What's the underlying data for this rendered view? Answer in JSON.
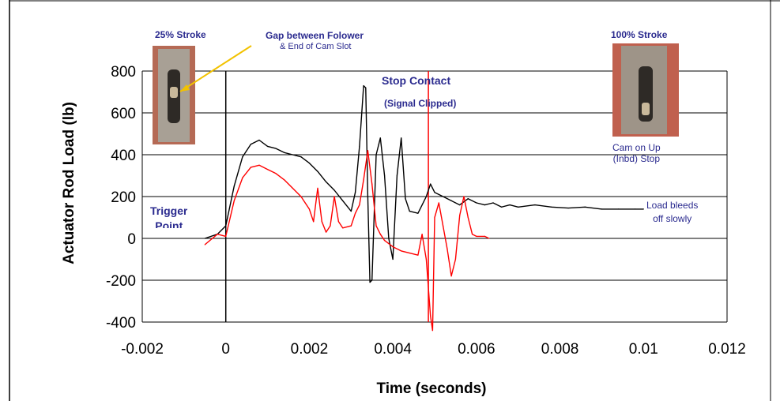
{
  "chart_data": {
    "type": "line",
    "xlabel": "Time (seconds)",
    "ylabel": "Actuator Rod Load (lb)",
    "xlim": [
      -0.002,
      0.012
    ],
    "ylim": [
      -400,
      800
    ],
    "x_ticks": [
      "-0.002",
      "0",
      "0.002",
      "0.004",
      "0.006",
      "0.008",
      "0.01",
      "0.012"
    ],
    "y_ticks": [
      "800",
      "600",
      "400",
      "200",
      "0",
      "-200",
      "-400"
    ],
    "grid": "horizontal",
    "series": [
      {
        "color": "#000000",
        "points": [
          [
            -0.0005,
            0
          ],
          [
            -0.0002,
            20
          ],
          [
            0.0,
            60
          ],
          [
            0.0002,
            250
          ],
          [
            0.0004,
            390
          ],
          [
            0.0006,
            450
          ],
          [
            0.0008,
            470
          ],
          [
            0.001,
            440
          ],
          [
            0.0012,
            430
          ],
          [
            0.0014,
            410
          ],
          [
            0.0016,
            400
          ],
          [
            0.0018,
            390
          ],
          [
            0.002,
            360
          ],
          [
            0.0022,
            320
          ],
          [
            0.0024,
            270
          ],
          [
            0.0026,
            230
          ],
          [
            0.0028,
            180
          ],
          [
            0.003,
            130
          ],
          [
            0.0031,
            220
          ],
          [
            0.0032,
            440
          ],
          [
            0.0033,
            730
          ],
          [
            0.00335,
            720
          ],
          [
            0.0034,
            200
          ],
          [
            0.00345,
            -210
          ],
          [
            0.0035,
            -200
          ],
          [
            0.0036,
            400
          ],
          [
            0.0037,
            480
          ],
          [
            0.0038,
            300
          ],
          [
            0.0039,
            0
          ],
          [
            0.004,
            -100
          ],
          [
            0.0041,
            300
          ],
          [
            0.0042,
            480
          ],
          [
            0.0043,
            190
          ],
          [
            0.0044,
            130
          ],
          [
            0.0046,
            120
          ],
          [
            0.0048,
            200
          ],
          [
            0.0049,
            260
          ],
          [
            0.005,
            220
          ],
          [
            0.0052,
            200
          ],
          [
            0.0054,
            180
          ],
          [
            0.0056,
            160
          ],
          [
            0.0058,
            190
          ],
          [
            0.006,
            170
          ],
          [
            0.0062,
            160
          ],
          [
            0.0064,
            170
          ],
          [
            0.0066,
            150
          ],
          [
            0.0068,
            160
          ],
          [
            0.007,
            150
          ],
          [
            0.0074,
            160
          ],
          [
            0.0078,
            150
          ],
          [
            0.0082,
            145
          ],
          [
            0.0086,
            150
          ],
          [
            0.009,
            140
          ],
          [
            0.0094,
            140
          ],
          [
            0.0098,
            140
          ],
          [
            0.01,
            140
          ]
        ]
      },
      {
        "color": "#ff0000",
        "points": [
          [
            -0.0005,
            -30
          ],
          [
            -0.0002,
            20
          ],
          [
            0.0,
            10
          ],
          [
            0.0002,
            180
          ],
          [
            0.0004,
            290
          ],
          [
            0.0006,
            340
          ],
          [
            0.0008,
            350
          ],
          [
            0.001,
            330
          ],
          [
            0.0012,
            310
          ],
          [
            0.0014,
            280
          ],
          [
            0.0016,
            240
          ],
          [
            0.0018,
            200
          ],
          [
            0.002,
            140
          ],
          [
            0.0021,
            80
          ],
          [
            0.0022,
            240
          ],
          [
            0.0023,
            80
          ],
          [
            0.0024,
            30
          ],
          [
            0.0025,
            60
          ],
          [
            0.0026,
            200
          ],
          [
            0.0027,
            80
          ],
          [
            0.0028,
            50
          ],
          [
            0.003,
            60
          ],
          [
            0.0031,
            120
          ],
          [
            0.0032,
            160
          ],
          [
            0.0033,
            280
          ],
          [
            0.0034,
            420
          ],
          [
            0.0035,
            260
          ],
          [
            0.0036,
            60
          ],
          [
            0.0037,
            20
          ],
          [
            0.0038,
            -10
          ],
          [
            0.004,
            -40
          ],
          [
            0.0042,
            -60
          ],
          [
            0.0044,
            -70
          ],
          [
            0.0046,
            -80
          ],
          [
            0.0047,
            20
          ],
          [
            0.0048,
            -100
          ],
          [
            0.0049,
            -370
          ],
          [
            0.00495,
            -440
          ],
          [
            0.005,
            100
          ],
          [
            0.0051,
            170
          ],
          [
            0.0052,
            60
          ],
          [
            0.0053,
            -50
          ],
          [
            0.0054,
            -180
          ],
          [
            0.0055,
            -100
          ],
          [
            0.0056,
            110
          ],
          [
            0.0057,
            200
          ],
          [
            0.0058,
            100
          ],
          [
            0.0059,
            20
          ],
          [
            0.006,
            10
          ],
          [
            0.0062,
            10
          ],
          [
            0.0063,
            0
          ]
        ]
      }
    ],
    "vertical_markers": [
      {
        "x": 0.0,
        "color": "#000000"
      },
      {
        "x": 0.00485,
        "color": "#ff0000"
      }
    ]
  },
  "annotations": {
    "trigger_point": "Trigger\nPoint",
    "stroke_25": "25% Stroke",
    "gap": "Gap between Folower",
    "gap_sub": "& End of Cam Slot",
    "stop_contact": "Stop Contact",
    "signal_clipped": "(Signal Clipped)",
    "stroke_100": "100% Stroke",
    "cam_on_up": "Cam on Up\n(Inbd) Stop",
    "load_bleeds": "Load bleeds\noff slowly"
  }
}
